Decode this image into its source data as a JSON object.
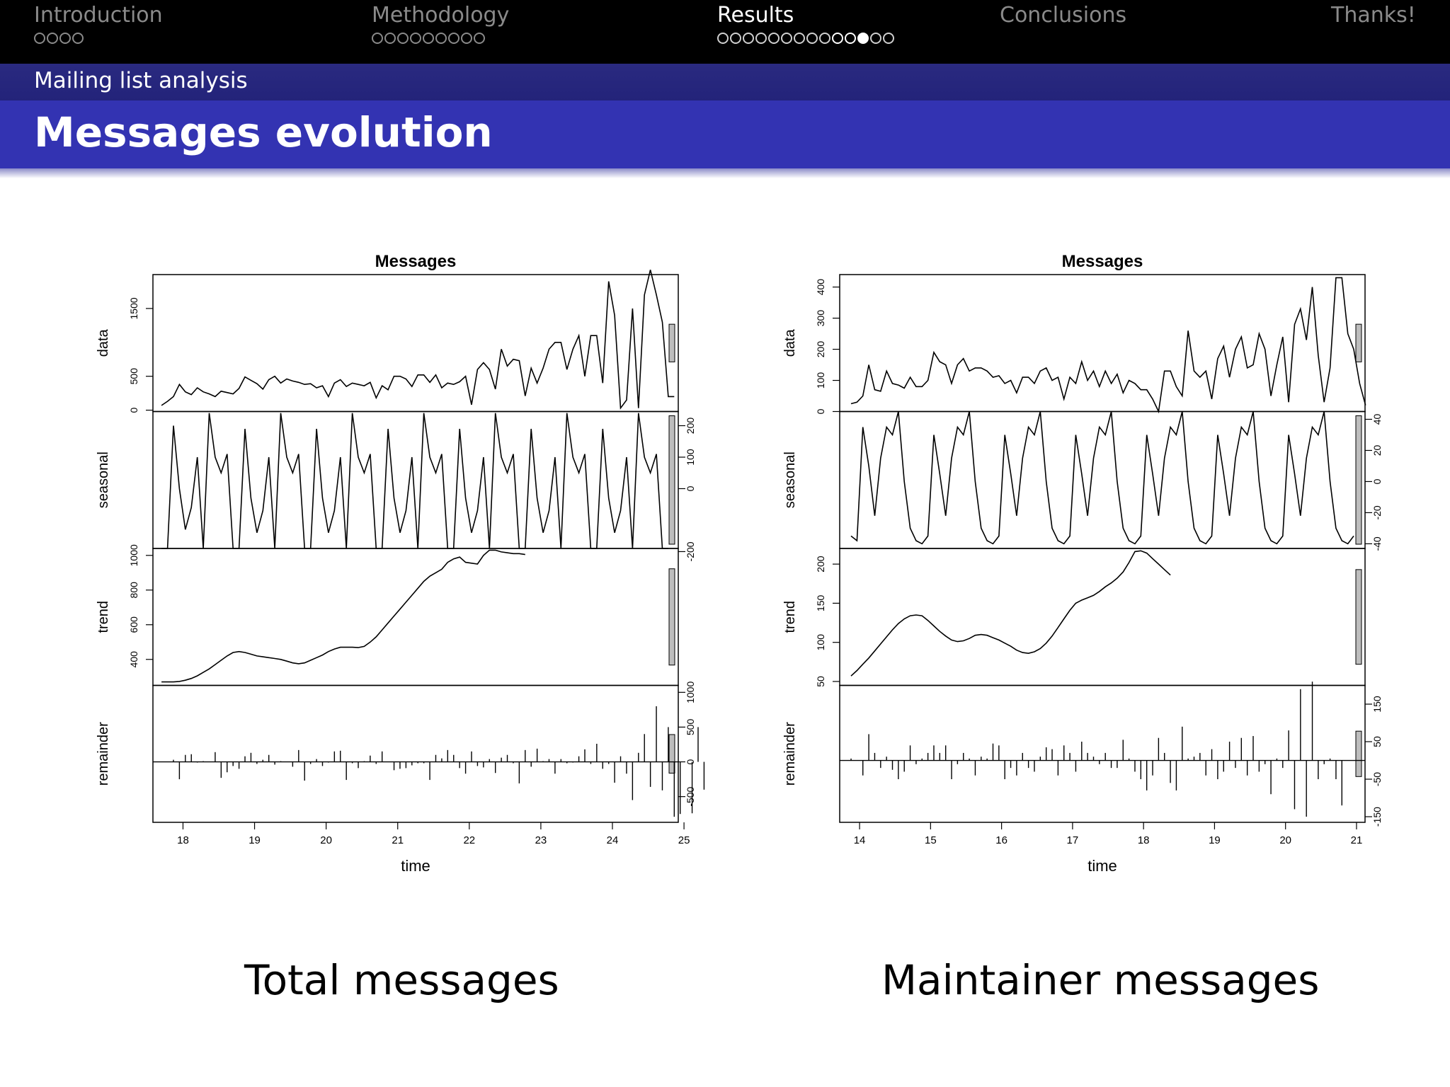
{
  "nav": {
    "sections": [
      {
        "label": "Introduction",
        "dots": 4,
        "current_dot": null,
        "active": false
      },
      {
        "label": "Methodology",
        "dots": 9,
        "current_dot": null,
        "active": false
      },
      {
        "label": "Results",
        "dots": 14,
        "current_dot": 11,
        "active": true
      },
      {
        "label": "Conclusions",
        "dots": 0,
        "current_dot": null,
        "active": false
      },
      {
        "label": "Thanks!",
        "dots": 0,
        "current_dot": null,
        "active": false
      }
    ]
  },
  "subsection": "Mailing list analysis",
  "frame_title": "Messages evolution",
  "captions": {
    "left": "Total messages",
    "right": "Maintainer messages"
  },
  "chart_data": [
    {
      "type": "line",
      "title": "Messages",
      "xlabel": "time",
      "xlim": [
        17.58,
        24.92
      ],
      "xticks": [
        18,
        19,
        20,
        21,
        22,
        23,
        24,
        25
      ],
      "x_start": 17.7,
      "x_step": 0.0833,
      "panels": [
        {
          "name": "data",
          "ylabel": "data",
          "kind": "line",
          "axis": "left",
          "ylim": [
            -20,
            2000
          ],
          "yticks": [
            0,
            500,
            1500
          ],
          "values": [
            70,
            130,
            200,
            380,
            270,
            230,
            330,
            270,
            240,
            200,
            280,
            260,
            240,
            320,
            490,
            440,
            390,
            310,
            450,
            500,
            400,
            460,
            430,
            410,
            380,
            390,
            330,
            360,
            200,
            400,
            450,
            350,
            400,
            380,
            360,
            410,
            180,
            360,
            300,
            500,
            500,
            460,
            350,
            520,
            520,
            410,
            520,
            330,
            400,
            380,
            420,
            500,
            80,
            600,
            700,
            600,
            310,
            900,
            650,
            750,
            730,
            210,
            620,
            400,
            620,
            900,
            1000,
            1000,
            600,
            900,
            1100,
            500,
            1100,
            1100,
            400,
            1900,
            1400,
            30,
            150,
            1500,
            30,
            1700,
            2070,
            1700,
            1300,
            200,
            200
          ]
        },
        {
          "name": "seasonal",
          "ylabel": "seasonal",
          "kind": "line",
          "axis": "right",
          "ylim": [
            -190,
            245
          ],
          "yticks": [
            -200,
            0,
            100,
            200
          ],
          "values": [
            -190,
            -190,
            200,
            0,
            -130,
            -60,
            100,
            -190,
            240,
            100,
            50,
            110,
            -190,
            -190,
            190,
            -30,
            -140,
            -70,
            100,
            -190,
            240,
            100,
            50,
            110,
            -190,
            -190,
            190,
            -30,
            -140,
            -70,
            100,
            -190,
            240,
            100,
            50,
            110,
            -190,
            -190,
            190,
            -30,
            -140,
            -70,
            100,
            -190,
            240,
            100,
            50,
            110,
            -190,
            -190,
            190,
            -30,
            -140,
            -70,
            100,
            -190,
            240,
            100,
            50,
            110,
            -190,
            -190,
            190,
            -30,
            -140,
            -70,
            100,
            -190,
            240,
            100,
            50,
            110,
            -190,
            -190,
            190,
            -30,
            -140,
            -70,
            100,
            -190,
            240,
            100,
            50,
            110,
            -190,
            -190
          ]
        },
        {
          "name": "trend",
          "ylabel": "trend",
          "kind": "line",
          "axis": "left",
          "ylim": [
            250,
            1040
          ],
          "yticks": [
            400,
            600,
            800,
            1000
          ],
          "values": [
            270,
            270,
            270,
            273,
            280,
            290,
            305,
            325,
            345,
            370,
            395,
            420,
            440,
            445,
            440,
            430,
            420,
            415,
            410,
            405,
            400,
            390,
            380,
            375,
            380,
            395,
            410,
            425,
            445,
            460,
            470,
            470,
            470,
            468,
            475,
            500,
            530,
            570,
            610,
            650,
            690,
            730,
            770,
            810,
            850,
            880,
            900,
            920,
            960,
            980,
            990,
            960,
            955,
            950,
            1000,
            1030,
            1030,
            1020,
            1015,
            1010,
            1010,
            1005
          ]
        },
        {
          "name": "remainder",
          "ylabel": "remainder",
          "kind": "bars",
          "axis": "right",
          "ylim": [
            -870,
            1100
          ],
          "yticks": [
            -500,
            0,
            500,
            1000
          ],
          "values": [
            0,
            0,
            30,
            -250,
            100,
            110,
            -10,
            10,
            0,
            140,
            -230,
            -150,
            -60,
            -100,
            80,
            130,
            -30,
            30,
            100,
            -40,
            10,
            0,
            -70,
            170,
            -270,
            -30,
            40,
            -60,
            -10,
            150,
            160,
            -260,
            -20,
            -90,
            10,
            90,
            -30,
            150,
            0,
            -120,
            -100,
            -90,
            -50,
            -20,
            -20,
            -260,
            100,
            50,
            170,
            100,
            -90,
            -170,
            150,
            -60,
            -80,
            40,
            -160,
            60,
            100,
            -20,
            -310,
            170,
            -70,
            190,
            10,
            40,
            -170,
            40,
            -20,
            -10,
            80,
            180,
            -30,
            260,
            -100,
            -30,
            -300,
            80,
            -170,
            -550,
            130,
            400,
            -360,
            800,
            -410,
            500,
            -790,
            -750,
            0,
            -740,
            500,
            -400,
            1100,
            600,
            0,
            -440,
            -440
          ]
        }
      ]
    },
    {
      "type": "line",
      "title": "Messages",
      "xlabel": "time",
      "xlim": [
        13.72,
        21.12
      ],
      "xticks": [
        14,
        15,
        16,
        17,
        18,
        19,
        20,
        21
      ],
      "x_start": 13.88,
      "x_step": 0.0833,
      "panels": [
        {
          "name": "data",
          "ylabel": "data",
          "kind": "line",
          "axis": "left",
          "ylim": [
            0,
            440
          ],
          "yticks": [
            0,
            100,
            200,
            300,
            400
          ],
          "values": [
            25,
            30,
            50,
            150,
            70,
            65,
            130,
            90,
            85,
            75,
            110,
            80,
            80,
            100,
            190,
            160,
            150,
            90,
            150,
            170,
            130,
            140,
            140,
            130,
            110,
            115,
            90,
            100,
            60,
            110,
            110,
            90,
            130,
            140,
            100,
            110,
            40,
            110,
            90,
            160,
            100,
            130,
            80,
            130,
            90,
            120,
            60,
            100,
            90,
            70,
            70,
            40,
            0,
            130,
            130,
            80,
            50,
            260,
            130,
            110,
            130,
            40,
            170,
            210,
            110,
            200,
            240,
            140,
            150,
            250,
            200,
            50,
            150,
            240,
            30,
            280,
            330,
            230,
            400,
            180,
            30,
            140,
            430,
            430,
            250,
            200,
            90,
            20
          ]
        },
        {
          "name": "seasonal",
          "ylabel": "seasonal",
          "kind": "line",
          "axis": "right",
          "ylim": [
            -43,
            45
          ],
          "yticks": [
            -40,
            -20,
            0,
            20,
            40
          ],
          "values": [
            -35,
            -38,
            35,
            10,
            -22,
            15,
            35,
            30,
            45,
            0,
            -30,
            -38,
            -40,
            -35,
            30,
            5,
            -22,
            15,
            35,
            30,
            45,
            0,
            -30,
            -38,
            -40,
            -35,
            30,
            5,
            -22,
            15,
            35,
            30,
            45,
            0,
            -30,
            -38,
            -40,
            -35,
            30,
            5,
            -22,
            15,
            35,
            30,
            45,
            0,
            -30,
            -38,
            -40,
            -35,
            30,
            5,
            -22,
            15,
            35,
            30,
            45,
            0,
            -30,
            -38,
            -40,
            -35,
            30,
            5,
            -22,
            15,
            35,
            30,
            45,
            0,
            -30,
            -38,
            -40,
            -35,
            30,
            5,
            -22,
            15,
            35,
            30,
            45,
            0,
            -30,
            -38,
            -40,
            -35
          ]
        },
        {
          "name": "trend",
          "ylabel": "trend",
          "kind": "line",
          "axis": "left",
          "ylim": [
            45,
            220
          ],
          "yticks": [
            50,
            100,
            150,
            200
          ],
          "values": [
            57,
            64,
            72,
            80,
            89,
            98,
            107,
            116,
            124,
            130,
            134,
            135,
            134,
            128,
            121,
            114,
            108,
            103,
            101,
            102,
            105,
            109,
            110,
            109,
            106,
            103,
            99,
            95,
            90,
            87,
            86,
            88,
            92,
            99,
            108,
            119,
            130,
            141,
            150,
            154,
            157,
            160,
            165,
            171,
            176,
            182,
            190,
            202,
            216,
            217,
            214,
            207,
            200,
            193,
            186
          ]
        },
        {
          "name": "remainder",
          "ylabel": "remainder",
          "kind": "bars",
          "axis": "right",
          "ylim": [
            -165,
            200
          ],
          "yticks": [
            -150,
            -50,
            50,
            150
          ],
          "values": [
            5,
            0,
            -40,
            70,
            20,
            -20,
            10,
            -25,
            -50,
            -30,
            40,
            -10,
            5,
            20,
            40,
            20,
            40,
            -50,
            -10,
            20,
            5,
            -40,
            10,
            5,
            45,
            40,
            -50,
            -20,
            -40,
            20,
            -20,
            -30,
            10,
            35,
            30,
            -40,
            40,
            20,
            -30,
            50,
            20,
            10,
            -10,
            20,
            -20,
            -20,
            55,
            5,
            -30,
            -50,
            -80,
            -40,
            60,
            20,
            -60,
            -80,
            90,
            5,
            10,
            20,
            -40,
            30,
            -50,
            -30,
            50,
            -20,
            60,
            -40,
            65,
            -30,
            -10,
            -90,
            5,
            -20,
            80,
            -130,
            190,
            -150,
            210,
            -50,
            -10,
            5,
            -50,
            -120
          ]
        }
      ]
    }
  ]
}
